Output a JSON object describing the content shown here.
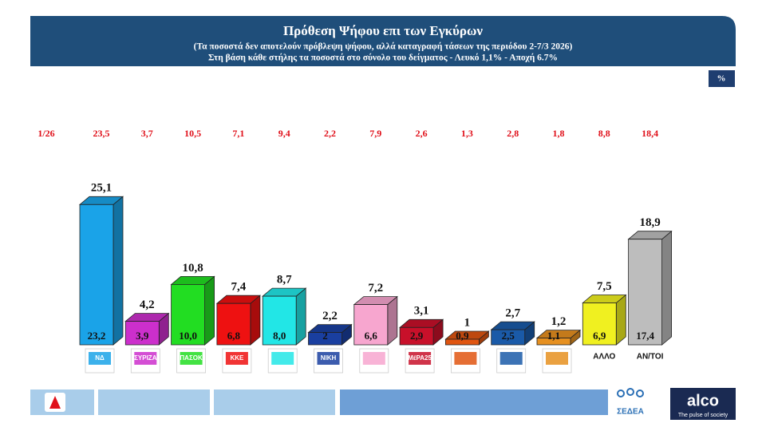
{
  "chart_data": {
    "type": "bar3d",
    "title": "Πρόθεση Ψήφου επι των Εγκύρων",
    "subtitle": "(Τα ποσοστά δεν αποτελούν πρόβλεψη ψήφου, αλλά καταγραφή τάσεων της περιόδου  2-7/3 2026)",
    "note": "Στη βάση κάθε στήλης τα ποσοστά στο σύνολο του δείγματος - Λευκό 1,1% - Αποχή 6.7%",
    "unit": "%",
    "comparison_label": "1/26",
    "categories": [
      "ΝΔ",
      "ΣΥΡΙΖΑ",
      "ΠΑΣΟΚ",
      "ΚΚΕ",
      null,
      "ΝΙΚΗ",
      null,
      "ΜέΡΑ25",
      null,
      null,
      null,
      "ΑΛΛΟ",
      "ΑΝ/ΤΟΙ"
    ],
    "colors": [
      "#1aa3e8",
      "#cc2fcc",
      "#22dd22",
      "#ee1111",
      "#22e6e6",
      "#1a3fa0",
      "#f7a6cf",
      "#c8102a",
      "#e05510",
      "#1a5aa8",
      "#e69020",
      "#f0f020",
      "#bdbdbd"
    ],
    "series": [
      {
        "values": [
          25.1,
          4.2,
          10.8,
          7.4,
          8.7,
          2.2,
          7.2,
          3.1,
          1,
          2.7,
          1.2,
          7.5,
          18.9
        ],
        "value_labels": [
          "25,1",
          "4,2",
          "10,8",
          "7,4",
          "8,7",
          "2,2",
          "7,2",
          "3,1",
          "1",
          "2,7",
          "1,2",
          "7,5",
          "18,9"
        ]
      },
      {
        "values": [
          23.2,
          3.9,
          10.0,
          6.8,
          8.0,
          2,
          6.6,
          2.9,
          0.9,
          2.5,
          1.1,
          6.9,
          17.4
        ],
        "value_labels": [
          "23,2",
          "3,9",
          "10,0",
          "6,8",
          "8,0",
          "2",
          "6,6",
          "2,9",
          "0,9",
          "2,5",
          "1,1",
          "6,9",
          "17,4"
        ]
      },
      {
        "values": [
          23.5,
          3.7,
          10.5,
          7.1,
          9.4,
          2.2,
          7.9,
          2.6,
          1.3,
          2.8,
          1.8,
          8.8,
          18.4
        ],
        "value_labels": [
          "23,5",
          "3,7",
          "10,5",
          "7,1",
          "9,4",
          "2,2",
          "7,9",
          "2,6",
          "1,3",
          "2,8",
          "1,8",
          "8,8",
          "18,4"
        ]
      }
    ]
  },
  "footer": {
    "brand": "ΣΕΔΕΑ",
    "company": "alco",
    "slogan": "The pulse of society"
  }
}
